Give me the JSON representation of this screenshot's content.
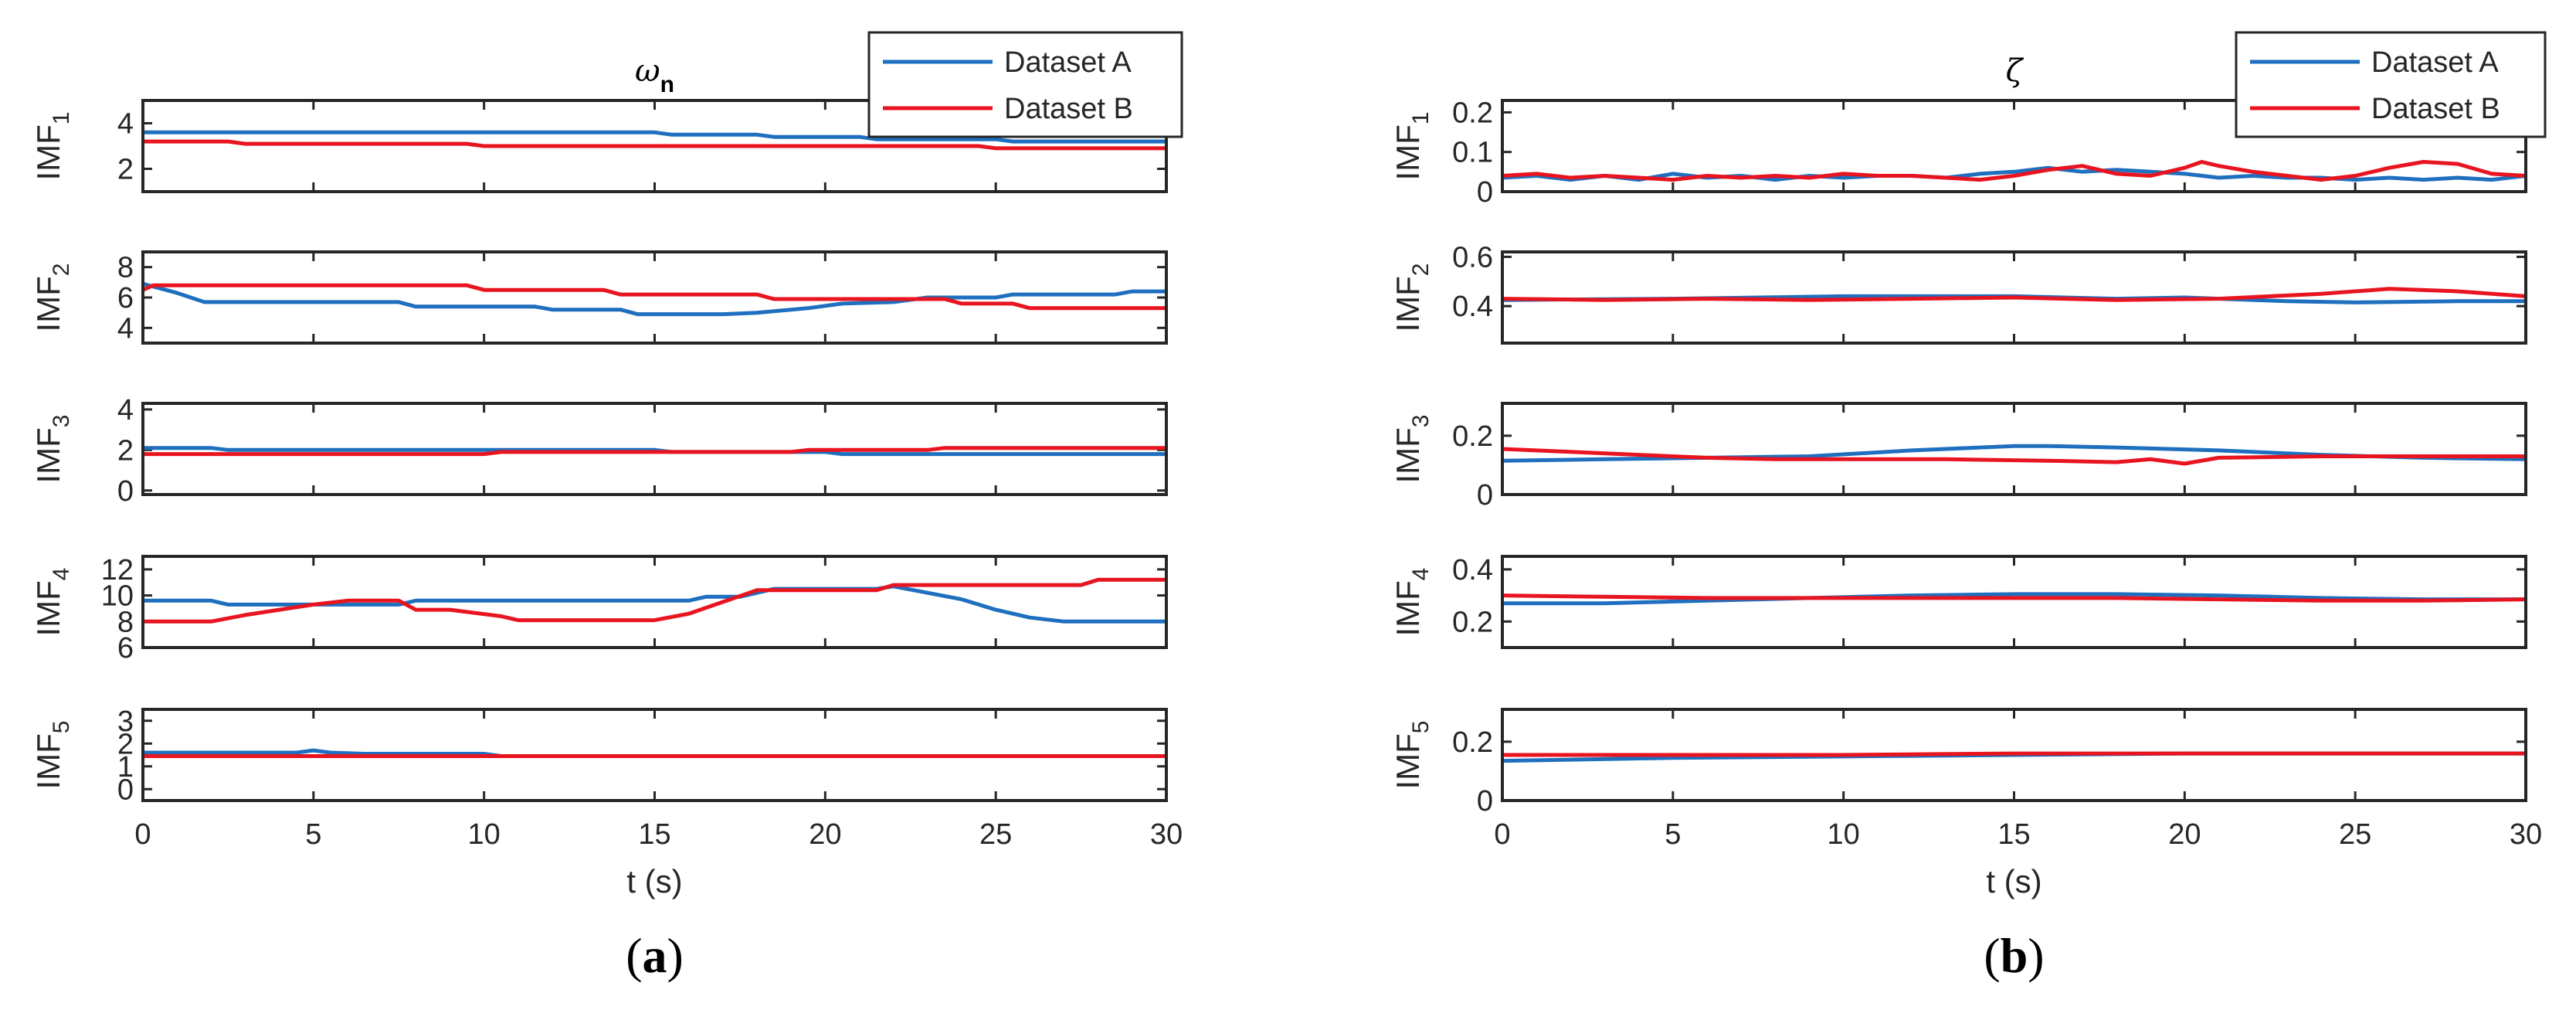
{
  "chart_data": [
    {
      "type": "line",
      "title": "ω",
      "title_subscript": "n",
      "panel_label": "(a)",
      "xlabel": "t (s)",
      "xlim": [
        0,
        30
      ],
      "xticks": [
        0,
        5,
        10,
        15,
        20,
        25,
        30
      ],
      "legend": {
        "position": "top-right",
        "entries": [
          "Dataset A",
          "Dataset B"
        ]
      },
      "colors": {
        "Dataset A": "#1f6fbf",
        "Dataset B": "#e8141f"
      },
      "subplots": [
        {
          "ylabel": "IMF",
          "ylabel_sub": "1",
          "ylim": [
            1,
            5
          ],
          "yticks": [
            2,
            4
          ],
          "series": [
            {
              "name": "Dataset A",
              "x": [
                0,
                15,
                15.5,
                18,
                18.5,
                21,
                21.5,
                25,
                25.5,
                30
              ],
              "y": [
                3.6,
                3.6,
                3.5,
                3.5,
                3.4,
                3.4,
                3.3,
                3.3,
                3.2,
                3.2
              ]
            },
            {
              "name": "Dataset B",
              "x": [
                0,
                2.5,
                3,
                9.5,
                10,
                24.5,
                25,
                30
              ],
              "y": [
                3.2,
                3.2,
                3.1,
                3.1,
                3.0,
                3.0,
                2.9,
                2.9
              ]
            }
          ]
        },
        {
          "ylabel": "IMF",
          "ylabel_sub": "2",
          "ylim": [
            3,
            9
          ],
          "yticks": [
            4,
            6,
            8
          ],
          "series": [
            {
              "name": "Dataset A",
              "x": [
                0,
                1,
                1.8,
                7.5,
                8,
                11.5,
                12,
                14,
                14.5,
                17,
                18,
                19.5,
                20.5,
                22,
                23,
                25,
                25.5,
                28.5,
                29,
                30
              ],
              "y": [
                6.9,
                6.3,
                5.7,
                5.7,
                5.4,
                5.4,
                5.2,
                5.2,
                4.9,
                4.9,
                5.0,
                5.3,
                5.6,
                5.7,
                6.0,
                6.0,
                6.2,
                6.2,
                6.4,
                6.4
              ]
            },
            {
              "name": "Dataset B",
              "x": [
                0,
                0.3,
                9.5,
                10,
                13.5,
                14,
                18,
                18.5,
                23.5,
                24,
                25.5,
                26,
                30
              ],
              "y": [
                6.5,
                6.8,
                6.8,
                6.5,
                6.5,
                6.2,
                6.2,
                5.9,
                5.9,
                5.6,
                5.6,
                5.3,
                5.3
              ]
            }
          ]
        },
        {
          "ylabel": "IMF",
          "ylabel_sub": "3",
          "ylim": [
            -0.2,
            4.3
          ],
          "yticks": [
            0,
            2,
            4
          ],
          "series": [
            {
              "name": "Dataset A",
              "x": [
                0,
                2,
                2.5,
                15,
                15.5,
                20,
                20.5,
                30
              ],
              "y": [
                2.1,
                2.1,
                2.0,
                2.0,
                1.9,
                1.9,
                1.8,
                1.8
              ]
            },
            {
              "name": "Dataset B",
              "x": [
                0,
                10,
                10.5,
                19,
                19.5,
                23,
                23.5,
                30
              ],
              "y": [
                1.8,
                1.8,
                1.9,
                1.9,
                2.0,
                2.0,
                2.1,
                2.1
              ]
            }
          ]
        },
        {
          "ylabel": "IMF",
          "ylabel_sub": "4",
          "ylim": [
            6,
            13
          ],
          "yticks": [
            6,
            8,
            10,
            12
          ],
          "series": [
            {
              "name": "Dataset A",
              "x": [
                0,
                2,
                2.5,
                7.5,
                8,
                16,
                16.5,
                17.5,
                18.5,
                21.5,
                22,
                24,
                25,
                26,
                27,
                30
              ],
              "y": [
                9.6,
                9.6,
                9.3,
                9.3,
                9.6,
                9.6,
                9.9,
                9.9,
                10.5,
                10.5,
                10.7,
                9.7,
                8.9,
                8.3,
                8.0,
                8.0
              ]
            },
            {
              "name": "Dataset B",
              "x": [
                0,
                2,
                3,
                4,
                5,
                6,
                7.5,
                8,
                9,
                10.5,
                11,
                15,
                16,
                17,
                18,
                21.5,
                22,
                27.5,
                28,
                30
              ],
              "y": [
                8.0,
                8.0,
                8.5,
                8.9,
                9.3,
                9.6,
                9.6,
                8.9,
                8.9,
                8.4,
                8.1,
                8.1,
                8.6,
                9.5,
                10.4,
                10.4,
                10.8,
                10.8,
                11.2,
                11.2
              ]
            }
          ]
        },
        {
          "ylabel": "IMF",
          "ylabel_sub": "5",
          "ylim": [
            -0.5,
            3.5
          ],
          "yticks": [
            0,
            1,
            2,
            3
          ],
          "series": [
            {
              "name": "Dataset A",
              "x": [
                0,
                4.5,
                5,
                5.5,
                6.5,
                10,
                10.5,
                30
              ],
              "y": [
                1.6,
                1.6,
                1.7,
                1.6,
                1.55,
                1.55,
                1.45,
                1.45
              ]
            },
            {
              "name": "Dataset B",
              "x": [
                0,
                30
              ],
              "y": [
                1.45,
                1.45
              ]
            }
          ]
        }
      ]
    },
    {
      "type": "line",
      "title": "ζ",
      "panel_label": "(b)",
      "xlabel": "t (s)",
      "xlim": [
        0,
        30
      ],
      "xticks": [
        0,
        5,
        10,
        15,
        20,
        25,
        30
      ],
      "legend": {
        "position": "top-right",
        "entries": [
          "Dataset A",
          "Dataset B"
        ]
      },
      "colors": {
        "Dataset A": "#1f6fbf",
        "Dataset B": "#e8141f"
      },
      "subplots": [
        {
          "ylabel": "IMF",
          "ylabel_sub": "1",
          "ylim": [
            0,
            0.23
          ],
          "yticks": [
            0,
            0.1,
            0.2
          ],
          "series": [
            {
              "name": "Dataset A",
              "x": [
                0,
                1,
                2,
                3,
                4,
                5,
                6,
                7,
                8,
                9,
                10,
                11,
                12,
                13,
                14,
                15,
                16,
                17,
                18,
                19,
                20,
                21,
                22,
                23,
                24,
                25,
                26,
                27,
                28,
                29,
                30
              ],
              "y": [
                0.035,
                0.04,
                0.03,
                0.04,
                0.03,
                0.045,
                0.035,
                0.04,
                0.03,
                0.04,
                0.035,
                0.04,
                0.04,
                0.035,
                0.045,
                0.05,
                0.06,
                0.05,
                0.055,
                0.05,
                0.045,
                0.035,
                0.04,
                0.035,
                0.035,
                0.03,
                0.035,
                0.03,
                0.035,
                0.03,
                0.04
              ]
            },
            {
              "name": "Dataset B",
              "x": [
                0,
                1,
                2,
                3,
                4,
                5,
                6,
                7,
                8,
                9,
                10,
                11,
                12,
                13,
                14,
                15,
                16,
                17,
                18,
                19,
                20,
                20.5,
                21,
                22,
                23,
                24,
                25,
                26,
                27,
                28,
                29,
                30
              ],
              "y": [
                0.04,
                0.045,
                0.035,
                0.04,
                0.035,
                0.03,
                0.04,
                0.035,
                0.04,
                0.035,
                0.045,
                0.04,
                0.04,
                0.035,
                0.03,
                0.04,
                0.055,
                0.065,
                0.045,
                0.04,
                0.06,
                0.075,
                0.065,
                0.05,
                0.04,
                0.03,
                0.04,
                0.06,
                0.075,
                0.07,
                0.045,
                0.04
              ]
            }
          ]
        },
        {
          "ylabel": "IMF",
          "ylabel_sub": "2",
          "ylim": [
            0.25,
            0.62
          ],
          "yticks": [
            0.4,
            0.6
          ],
          "series": [
            {
              "name": "Dataset A",
              "x": [
                0,
                5,
                10,
                15,
                18,
                20,
                23,
                25,
                28,
                30
              ],
              "y": [
                0.425,
                0.43,
                0.44,
                0.44,
                0.43,
                0.435,
                0.42,
                0.415,
                0.42,
                0.42
              ]
            },
            {
              "name": "Dataset B",
              "x": [
                0,
                3,
                6,
                9,
                12,
                15,
                18,
                21,
                24,
                26,
                28,
                30
              ],
              "y": [
                0.43,
                0.425,
                0.43,
                0.425,
                0.43,
                0.435,
                0.425,
                0.43,
                0.45,
                0.47,
                0.46,
                0.44
              ]
            }
          ]
        },
        {
          "ylabel": "IMF",
          "ylabel_sub": "3",
          "ylim": [
            0,
            0.31
          ],
          "yticks": [
            0,
            0.2
          ],
          "series": [
            {
              "name": "Dataset A",
              "x": [
                0,
                3,
                6,
                9,
                12,
                15,
                16,
                18,
                21,
                24,
                27,
                30
              ],
              "y": [
                0.115,
                0.12,
                0.125,
                0.13,
                0.15,
                0.165,
                0.165,
                0.16,
                0.15,
                0.135,
                0.125,
                0.12
              ]
            },
            {
              "name": "Dataset B",
              "x": [
                0,
                2,
                4,
                6,
                8,
                10,
                13,
                16,
                18,
                19,
                20,
                21,
                24,
                27,
                30
              ],
              "y": [
                0.155,
                0.145,
                0.135,
                0.125,
                0.12,
                0.12,
                0.12,
                0.115,
                0.11,
                0.12,
                0.105,
                0.125,
                0.13,
                0.13,
                0.13
              ]
            }
          ]
        },
        {
          "ylabel": "IMF",
          "ylabel_sub": "4",
          "ylim": [
            0.1,
            0.45
          ],
          "yticks": [
            0.2,
            0.4
          ],
          "series": [
            {
              "name": "Dataset A",
              "x": [
                0,
                3,
                6,
                9,
                12,
                15,
                18,
                21,
                24,
                27,
                30
              ],
              "y": [
                0.27,
                0.27,
                0.28,
                0.29,
                0.3,
                0.305,
                0.305,
                0.3,
                0.29,
                0.285,
                0.285
              ]
            },
            {
              "name": "Dataset B",
              "x": [
                0,
                3,
                6,
                9,
                12,
                15,
                18,
                21,
                24,
                27,
                30
              ],
              "y": [
                0.3,
                0.295,
                0.29,
                0.29,
                0.29,
                0.29,
                0.29,
                0.285,
                0.28,
                0.28,
                0.285
              ]
            }
          ]
        },
        {
          "ylabel": "IMF",
          "ylabel_sub": "5",
          "ylim": [
            0,
            0.31
          ],
          "yticks": [
            0,
            0.2
          ],
          "series": [
            {
              "name": "Dataset A",
              "x": [
                0,
                5,
                10,
                15,
                20,
                25,
                30
              ],
              "y": [
                0.135,
                0.145,
                0.15,
                0.155,
                0.16,
                0.16,
                0.16
              ]
            },
            {
              "name": "Dataset B",
              "x": [
                0,
                5,
                10,
                15,
                20,
                25,
                30
              ],
              "y": [
                0.155,
                0.155,
                0.155,
                0.16,
                0.16,
                0.16,
                0.16
              ]
            }
          ]
        }
      ]
    }
  ]
}
